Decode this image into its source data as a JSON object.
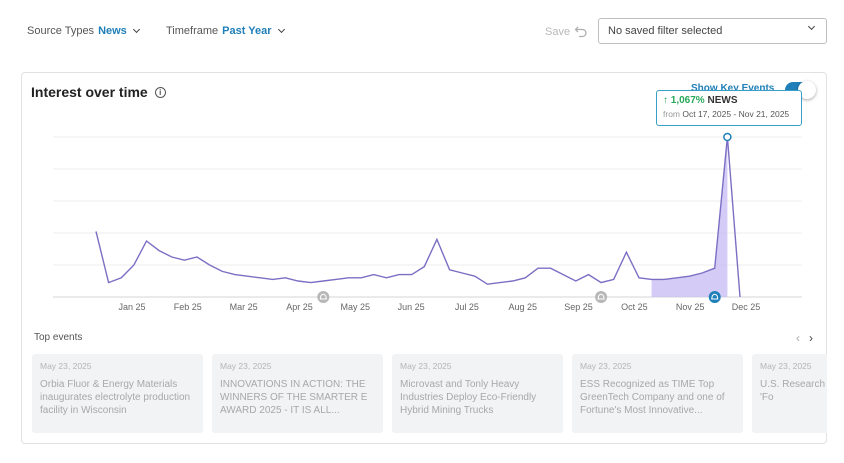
{
  "filters": {
    "source_label": "Source Types",
    "source_value": "News",
    "timeframe_label": "Timeframe",
    "timeframe_value": "Past Year",
    "save_label": "Save",
    "saved_filter": "No saved filter selected"
  },
  "panel": {
    "title": "Interest over time",
    "info_icon": "i",
    "key_events_label": "Show Key Events"
  },
  "tooltip": {
    "change": "1,067%",
    "series": "NEWS",
    "from_label": "from",
    "range": "Oct 17, 2025 - Nov 21, 2025"
  },
  "chart_data": {
    "type": "line",
    "x_labels": [
      "Jan 25",
      "Feb 25",
      "Mar 25",
      "Apr 25",
      "May 25",
      "Jun 25",
      "Jul 25",
      "Aug 25",
      "Sep 25",
      "Oct 25",
      "Nov 25",
      "Dec 25"
    ],
    "values": [
      41,
      9,
      12,
      20,
      35,
      29,
      25,
      23,
      25,
      20,
      16,
      14,
      13,
      12,
      11,
      12,
      10,
      9,
      10,
      11,
      12,
      12,
      14,
      12,
      14,
      14,
      19,
      36,
      17,
      15,
      13,
      8,
      9,
      10,
      12,
      18,
      18,
      14,
      10,
      14,
      9,
      11,
      28,
      12,
      11,
      11,
      12,
      13,
      15,
      18,
      100,
      0
    ],
    "highlight_range": [
      44,
      50
    ],
    "ylim": [
      0,
      100
    ],
    "line_color": "#7b6fc4",
    "fill_color": "#c9bff5",
    "key_event_markers": [
      {
        "index": 18,
        "active": false
      },
      {
        "index": 40,
        "active": false
      },
      {
        "index": 49,
        "active": true
      }
    ]
  },
  "top_events": {
    "label": "Top events",
    "prev_icon": "‹",
    "next_icon": "›",
    "items": [
      {
        "date": "May 23, 2025",
        "title": "Orbia Fluor & Energy Materials inaugurates electrolyte production facility in Wisconsin"
      },
      {
        "date": "May 23, 2025",
        "title": "INNOVATIONS IN ACTION: THE WINNERS OF THE SMARTER E AWARD 2025 - IT IS ALL..."
      },
      {
        "date": "May 23, 2025",
        "title": "Microvast and Tonly Heavy Industries Deploy Eco-Friendly Hybrid Mining Trucks"
      },
      {
        "date": "May 23, 2025",
        "title": "ESS Recognized as TIME Top GreenTech Company and one of Fortune's Most Innovative..."
      },
      {
        "date": "May 23, 2025",
        "title": "U.S. Research Developing Without 'Fo"
      }
    ]
  }
}
